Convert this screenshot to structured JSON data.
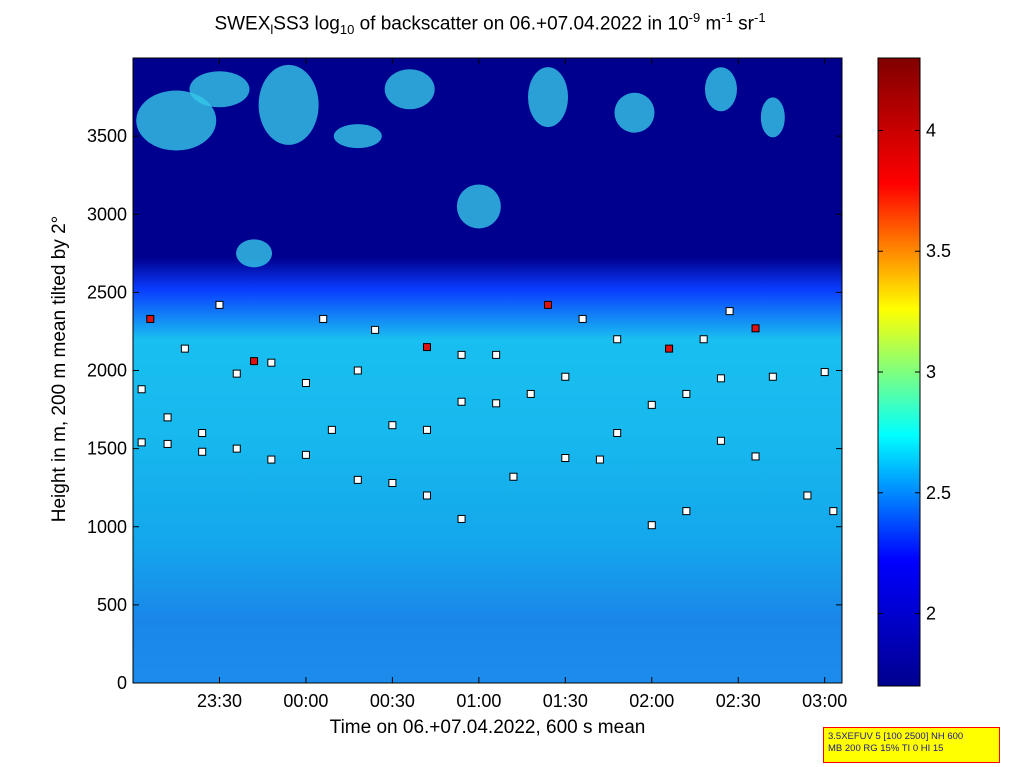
{
  "title": {
    "part1": "SWEX",
    "sub1": "l",
    "part2": "SS3 log",
    "sub2": "10",
    "part3": " of backscatter on 06.+07.04.2022 in 10",
    "sup1": "-9",
    "part4": " m",
    "sup2": "-1",
    "part5": " sr",
    "sup3": "-1"
  },
  "chart_data": {
    "type": "heatmap",
    "xlabel": "Time on 06.+07.04.2022, 600 s mean",
    "ylabel": "Height in m, 200 m mean tilted by 2°",
    "x_ticks": [
      "23:30",
      "00:00",
      "00:30",
      "01:00",
      "01:30",
      "02:00",
      "02:30",
      "03:00"
    ],
    "x_range_hours": [
      23.0,
      27.1
    ],
    "ylim": [
      0,
      4000
    ],
    "y_ticks": [
      0,
      500,
      1000,
      1500,
      2000,
      2500,
      3000,
      3500
    ],
    "colorbar": {
      "min": 1.7,
      "max": 4.3,
      "ticks": [
        "2",
        "2.5",
        "3",
        "3.5",
        "4"
      ]
    },
    "colormap": [
      "#00008f",
      "#0000ff",
      "#00ffff",
      "#ffff00",
      "#ff0000",
      "#800000"
    ],
    "layer_markers": [
      {
        "name": "lowest",
        "points": [
          [
            23.05,
            1540
          ],
          [
            23.2,
            1530
          ],
          [
            23.4,
            1480
          ],
          [
            23.6,
            1500
          ],
          [
            23.8,
            1430
          ],
          [
            24.0,
            1460
          ],
          [
            24.15,
            1620
          ],
          [
            24.3,
            1300
          ],
          [
            24.5,
            1280
          ],
          [
            24.7,
            1200
          ],
          [
            24.9,
            1050
          ],
          [
            25.2,
            1320
          ],
          [
            25.5,
            1440
          ],
          [
            25.7,
            1430
          ],
          [
            26.0,
            1010
          ],
          [
            26.2,
            1100
          ],
          [
            26.4,
            1550
          ],
          [
            26.6,
            1450
          ],
          [
            26.9,
            1200
          ],
          [
            27.05,
            1100
          ]
        ]
      },
      {
        "name": "middle",
        "points": [
          [
            23.05,
            1880
          ],
          [
            23.2,
            1700
          ],
          [
            23.4,
            1600
          ],
          [
            23.6,
            1980
          ],
          [
            23.8,
            2050
          ],
          [
            24.0,
            1920
          ],
          [
            24.3,
            2000
          ],
          [
            24.5,
            1650
          ],
          [
            24.7,
            1620
          ],
          [
            24.9,
            1800
          ],
          [
            25.1,
            1790
          ],
          [
            25.3,
            1850
          ],
          [
            25.5,
            1960
          ],
          [
            25.8,
            1600
          ],
          [
            26.0,
            1780
          ],
          [
            26.2,
            1850
          ],
          [
            26.4,
            1950
          ],
          [
            26.7,
            1960
          ],
          [
            27.0,
            1990
          ]
        ]
      },
      {
        "name": "upper",
        "points": [
          [
            23.1,
            2330
          ],
          [
            23.3,
            2140
          ],
          [
            23.5,
            2420
          ],
          [
            23.7,
            2060
          ],
          [
            24.1,
            2330
          ],
          [
            24.4,
            2260
          ],
          [
            24.7,
            2150
          ],
          [
            24.9,
            2100
          ],
          [
            25.1,
            2100
          ],
          [
            25.4,
            2420
          ],
          [
            25.6,
            2330
          ],
          [
            25.8,
            2200
          ],
          [
            26.1,
            2140
          ],
          [
            26.3,
            2200
          ],
          [
            26.45,
            2380
          ],
          [
            26.6,
            2270
          ]
        ]
      }
    ]
  },
  "infobox": {
    "line1": "3.5XEFUV 5 [100 2500] NH 600",
    "line2": "MB 200 RG 15% TI 0 HI 15"
  }
}
